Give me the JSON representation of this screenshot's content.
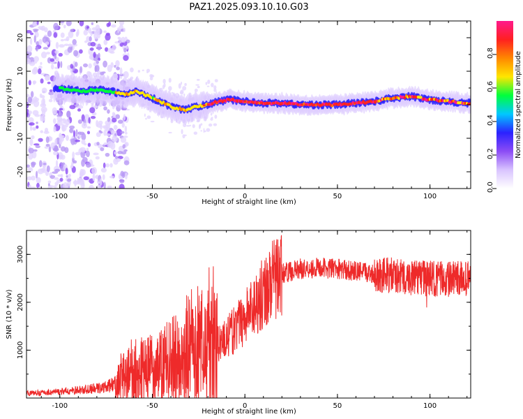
{
  "title": "PAZ1.2025.093.10.10.G03",
  "colors": {
    "snr_line": "#ee2a2a",
    "spectrum_ridge": "#ff2a2a",
    "colormap": [
      "#ffffff",
      "#d9c4ff",
      "#8c4cf5",
      "#2b22ff",
      "#00c8ff",
      "#00ff3c",
      "#ffe600",
      "#ff8800",
      "#ff2020",
      "#ff1a8c"
    ]
  },
  "chart_data": [
    {
      "type": "heatmap",
      "xlabel": "Height of straight line (km)",
      "ylabel": "Frequency (Hz)",
      "xlim": [
        -118,
        122
      ],
      "ylim": [
        -25,
        25
      ],
      "x_ticks": [
        -100,
        -50,
        0,
        50,
        100
      ],
      "y_ticks": [
        -20,
        -10,
        0,
        10,
        20
      ],
      "colorbar": {
        "label": "Normalized spectral amplitude",
        "range": [
          0,
          1
        ],
        "ticks": [
          "0.0",
          "0.2",
          "0.4",
          "0.6",
          "0.8"
        ]
      },
      "ridge": {
        "x": [
          -102,
          -95,
          -88,
          -80,
          -72,
          -65,
          -58,
          -50,
          -44,
          -38,
          -32,
          -26,
          -20,
          -14,
          -8,
          0,
          10,
          20,
          30,
          40,
          50,
          60,
          70,
          80,
          90,
          100,
          110,
          120
        ],
        "frequency": [
          5,
          4.5,
          4,
          4.5,
          4,
          3,
          4,
          2,
          0.5,
          -1,
          -1.5,
          -0.5,
          0,
          1,
          1.5,
          1,
          0.5,
          0.5,
          0,
          0,
          0,
          0.5,
          1,
          2,
          2.5,
          1.5,
          1,
          0.5
        ]
      }
    },
    {
      "type": "line",
      "xlabel": "Height of straight line (km)",
      "ylabel": "SNR (10 * v/v)",
      "xlim": [
        -118,
        122
      ],
      "ylim": [
        0,
        3500
      ],
      "x_ticks": [
        -100,
        -50,
        0,
        50,
        100
      ],
      "y_ticks": [
        1000,
        2000,
        3000
      ],
      "series": [
        {
          "x": [
            -118,
            -110,
            -100,
            -90,
            -80,
            -75,
            -70,
            -65,
            -60,
            -55,
            -50,
            -45,
            -40,
            -35,
            -30,
            -25,
            -20,
            -15,
            -10,
            -5,
            0,
            5,
            10,
            15,
            20,
            25,
            30,
            40,
            50,
            60,
            70,
            80,
            90,
            100,
            110,
            122
          ],
          "y": [
            100,
            110,
            130,
            160,
            200,
            230,
            300,
            450,
            550,
            600,
            650,
            700,
            750,
            850,
            950,
            1050,
            1100,
            1150,
            1250,
            1450,
            1700,
            1950,
            2200,
            2450,
            2600,
            2650,
            2700,
            2720,
            2700,
            2650,
            2600,
            2550,
            2500,
            2500,
            2480,
            2500
          ]
        }
      ]
    }
  ]
}
